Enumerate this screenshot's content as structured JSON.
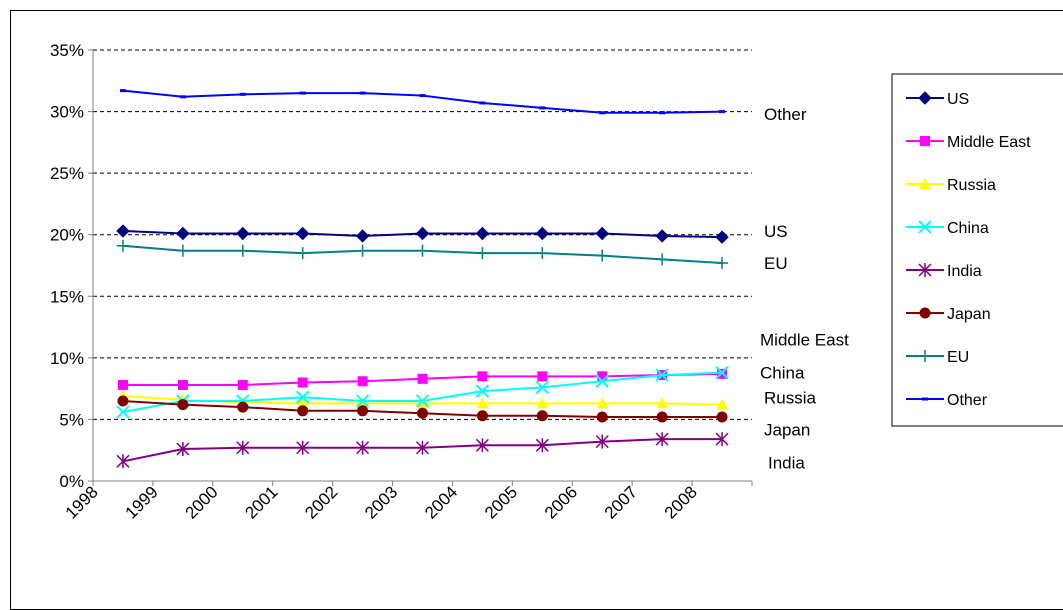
{
  "chart_data": {
    "type": "line",
    "categories": [
      "1998",
      "1999",
      "2000",
      "2001",
      "2002",
      "2003",
      "2004",
      "2005",
      "2006",
      "2007",
      "2008"
    ],
    "ylim": [
      0,
      35
    ],
    "yticks": [
      "0%",
      "5%",
      "10%",
      "15%",
      "20%",
      "25%",
      "30%",
      "35%"
    ],
    "grid": "horizontal dashed",
    "legend_position": "right",
    "series": [
      {
        "name": "US",
        "color": "#000080",
        "marker": "diamond",
        "values": [
          20.3,
          20.1,
          20.1,
          20.1,
          19.9,
          20.1,
          20.1,
          20.1,
          20.1,
          19.9,
          19.8
        ]
      },
      {
        "name": "Middle East",
        "color": "#ff00ff",
        "marker": "square",
        "values": [
          7.8,
          7.8,
          7.8,
          8.0,
          8.1,
          8.3,
          8.5,
          8.5,
          8.5,
          8.6,
          8.7
        ]
      },
      {
        "name": "Russia",
        "color": "#ffff00",
        "marker": "triangle",
        "values": [
          6.9,
          6.6,
          6.4,
          6.3,
          6.3,
          6.3,
          6.3,
          6.3,
          6.3,
          6.3,
          6.2
        ]
      },
      {
        "name": "China",
        "color": "#00ffff",
        "marker": "x",
        "values": [
          5.6,
          6.5,
          6.5,
          6.8,
          6.5,
          6.5,
          7.3,
          7.6,
          8.1,
          8.6,
          8.8
        ]
      },
      {
        "name": "India",
        "color": "#800080",
        "marker": "star",
        "values": [
          1.6,
          2.6,
          2.7,
          2.7,
          2.7,
          2.7,
          2.9,
          2.9,
          3.2,
          3.4,
          3.4
        ]
      },
      {
        "name": "Japan",
        "color": "#800000",
        "marker": "circle",
        "values": [
          6.5,
          6.2,
          6.0,
          5.7,
          5.7,
          5.5,
          5.3,
          5.3,
          5.2,
          5.2,
          5.2
        ]
      },
      {
        "name": "EU",
        "color": "#008080",
        "marker": "plus",
        "values": [
          19.1,
          18.7,
          18.7,
          18.5,
          18.7,
          18.7,
          18.5,
          18.5,
          18.3,
          18.0,
          17.7
        ]
      },
      {
        "name": "Other",
        "color": "#0000ff",
        "marker": "dash",
        "values": [
          31.7,
          31.2,
          31.4,
          31.5,
          31.5,
          31.3,
          30.7,
          30.3,
          29.9,
          29.9,
          30.0
        ]
      }
    ],
    "annotations": [
      {
        "text": "Other",
        "value": 29.8
      },
      {
        "text": "US",
        "value": 20.3
      },
      {
        "text": "EU",
        "value": 17.7
      },
      {
        "text": "Middle East",
        "value": 11.5
      },
      {
        "text": "China",
        "value": 8.8
      },
      {
        "text": "Russia",
        "value": 6.8
      },
      {
        "text": "Japan",
        "value": 4.2
      },
      {
        "text": "India",
        "value": 1.5
      }
    ]
  }
}
